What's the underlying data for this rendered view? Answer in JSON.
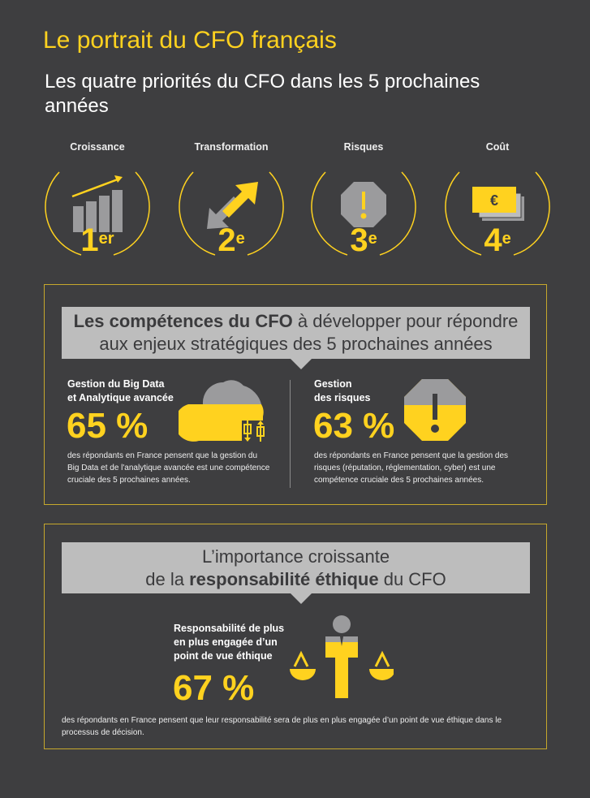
{
  "header": {
    "title": "Le portrait du CFO français",
    "subtitle": "Les quatre priorités du CFO dans les 5 prochaines années"
  },
  "priorities": [
    {
      "label": "Croissance",
      "rank": "1",
      "suffix": "er",
      "icon": "bar-chart-growth-icon"
    },
    {
      "label": "Transformation",
      "rank": "2",
      "suffix": "e",
      "icon": "two-way-arrows-icon"
    },
    {
      "label": "Risques",
      "rank": "3",
      "suffix": "e",
      "icon": "warning-octagon-icon"
    },
    {
      "label": "Coût",
      "rank": "4",
      "suffix": "e",
      "icon": "euro-banknotes-icon"
    }
  ],
  "skills": {
    "title_bold": "Les compétences du CFO",
    "title_rest": " à développer pour répondre",
    "title_line2": "aux enjeux stratégiques des 5 prochaines années",
    "items": [
      {
        "heading_l1": "Gestion du Big Data",
        "heading_l2": "et Analytique avancée",
        "value": "65 %",
        "percent": 65,
        "description": "des répondants en France pensent que la gestion du Big Data et de l'analytique avancée est une compétence cruciale des 5 prochaines années.",
        "icon": "cloud-data-icon"
      },
      {
        "heading_l1": "Gestion",
        "heading_l2": "des risques",
        "value": "63 %",
        "percent": 63,
        "description": "des répondants en France pensent que la gestion des risques (réputation, réglementation, cyber) est une compétence cruciale des 5 prochaines années.",
        "icon": "warning-octagon-icon"
      }
    ]
  },
  "ethics": {
    "title_line1": "L’importance croissante",
    "title_pre": "de la ",
    "title_bold": "responsabilité éthique",
    "title_post": " du CFO",
    "heading": "Responsabilité de plus en plus engagée d’un point de vue éthique",
    "value": "67 %",
    "percent": 67,
    "description": "des répondants en France pensent que leur responsabilité sera de plus en plus engagée d’un point de vue éthique dans le processus de décision.",
    "icon": "person-scales-icon"
  },
  "colors": {
    "accent": "#ffd21f",
    "background": "#3e3e40",
    "gray": "#9b9b9d",
    "header_gray": "#bdbdbd"
  }
}
